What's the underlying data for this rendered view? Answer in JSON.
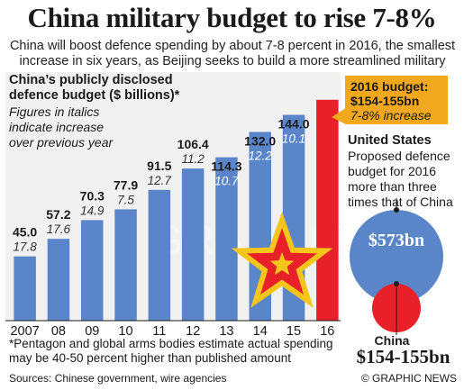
{
  "title": "China military budget to rise 7-8%",
  "subtitle": "China will boost defence spending by about 7-8 percent in 2016, the smallest increase in six years, as Beijing seeks to build a more streamlined military",
  "legend": {
    "title_line1": "China’s publicly disclosed",
    "title_line2": "defence budget ($ billions)*",
    "note_line1": "Figures in italics",
    "note_line2": "indicate increase",
    "note_line3": "over previous year"
  },
  "chart_data": {
    "type": "bar",
    "title": "China’s publicly disclosed defence budget ($ billions)*",
    "categories": [
      "2007",
      "08",
      "09",
      "10",
      "11",
      "12",
      "13",
      "14",
      "15",
      "16"
    ],
    "values": [
      45.0,
      57.2,
      70.3,
      77.9,
      91.5,
      106.4,
      114.3,
      132.0,
      144.0,
      154.5
    ],
    "value_labels": [
      "45.0",
      "57.2",
      "70.3",
      "77.9",
      "91.5",
      "106.4",
      "114.3",
      "132.0",
      "144.0",
      ""
    ],
    "pct_increase": [
      "17.8",
      "17.6",
      "14.9",
      "7.5",
      "12.7",
      "11.2",
      "10.7",
      "12.2",
      "10.1",
      ""
    ],
    "ylim": [
      0,
      160
    ],
    "grid": false,
    "colors": {
      "bar": "#5a86c9",
      "highlight": "#e8202a"
    }
  },
  "callout": {
    "line1": "2016 budget:",
    "line2": "$154-155bn",
    "line3": "7-8% increase"
  },
  "us": {
    "title": "United States",
    "desc_line1": "Proposed defence",
    "desc_line2": "budget for 2016",
    "desc_line3": "more than three",
    "desc_line4": "times that of China",
    "value": "$573bn"
  },
  "china": {
    "label": "China",
    "value": "$154-155bn"
  },
  "footnote": {
    "line1": "*Pentagon and global arms bodies estimate actual spending",
    "line2": "may be 40-50 percent higher than published amount"
  },
  "sources": "Sources: Chinese government, wire agencies",
  "credit": "© GRAPHIC NEWS",
  "watermark": "GRAPHIC NEWS"
}
